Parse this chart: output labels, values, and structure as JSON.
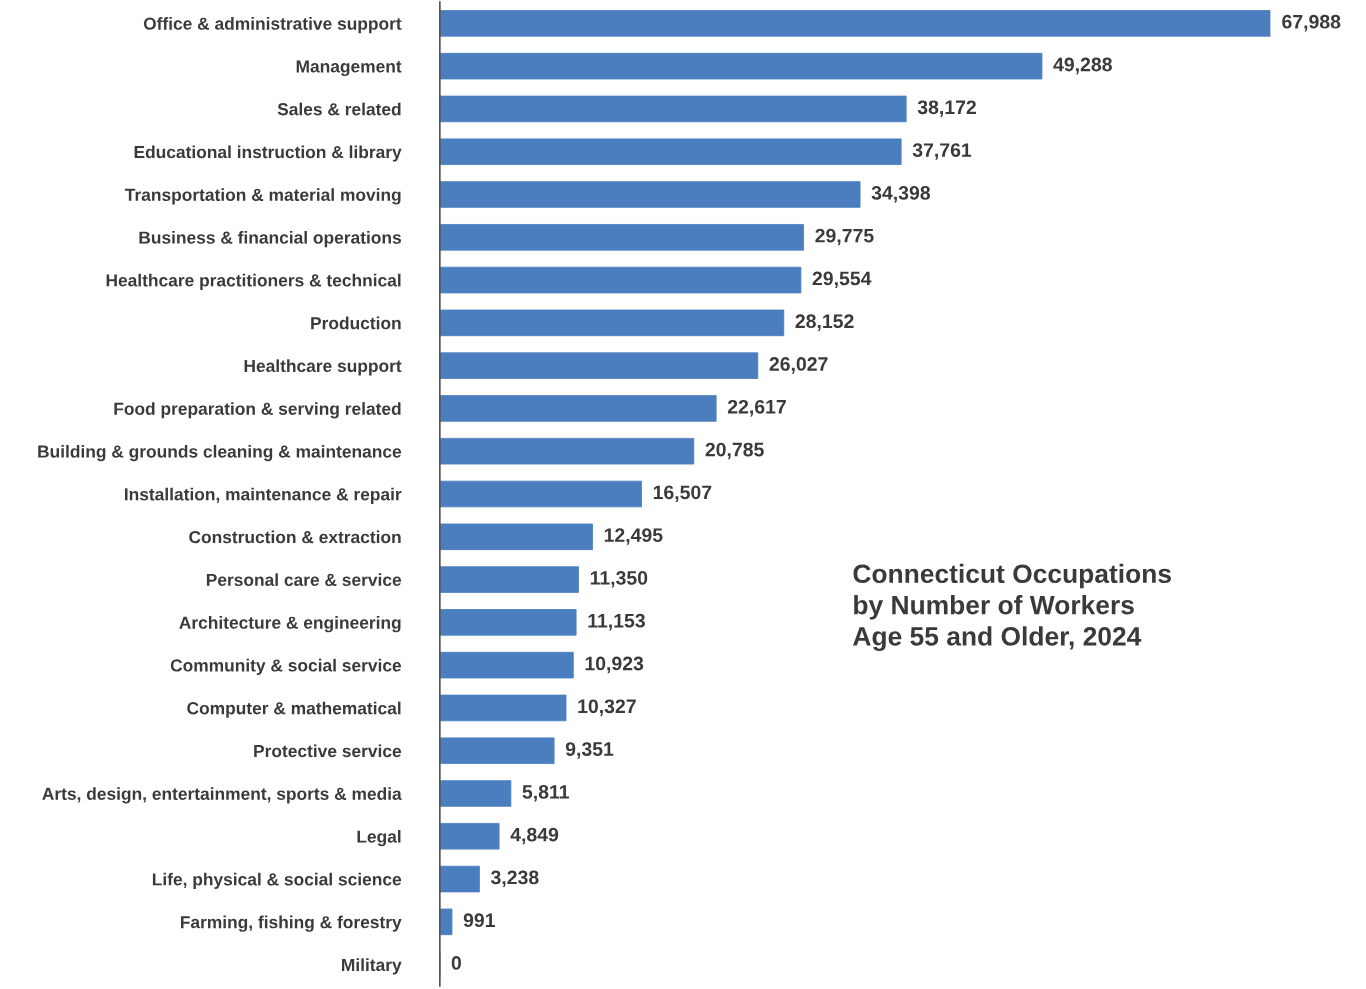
{
  "chart_data": {
    "type": "bar",
    "orientation": "horizontal",
    "title": "Connecticut Occupations\nby Number of Workers\nAge 55 and Older, 2024",
    "categories": [
      "Office & administrative support",
      "Management",
      "Sales & related",
      "Educational instruction & library",
      "Transportation & material moving",
      "Business & financial operations",
      "Healthcare practitioners & technical",
      "Production",
      "Healthcare support",
      "Food preparation & serving related",
      "Building & grounds cleaning & maintenance",
      "Installation, maintenance & repair",
      "Construction & extraction",
      "Personal care & service",
      "Architecture & engineering",
      "Community & social service",
      "Computer & mathematical",
      "Protective service",
      "Arts, design, entertainment, sports & media",
      "Legal",
      "Life, physical & social science",
      "Farming, fishing & forestry",
      "Military"
    ],
    "values": [
      67988,
      49288,
      38172,
      37761,
      34398,
      29775,
      29554,
      28152,
      26027,
      22617,
      20785,
      16507,
      12495,
      11350,
      11153,
      10923,
      10327,
      9351,
      5811,
      4849,
      3238,
      991,
      0
    ],
    "value_labels": [
      "67,988",
      "49,288",
      "38,172",
      "37,761",
      "34,398",
      "29,775",
      "29,554",
      "28,152",
      "26,027",
      "22,617",
      "20,785",
      "16,507",
      "12,495",
      "11,350",
      "11,153",
      "10,923",
      "10,327",
      "9,351",
      "5,811",
      "4,849",
      "3,238",
      "991",
      "0"
    ],
    "color": "#4a7ebf",
    "tick_labels": "y",
    "grid": false,
    "legend": false
  }
}
